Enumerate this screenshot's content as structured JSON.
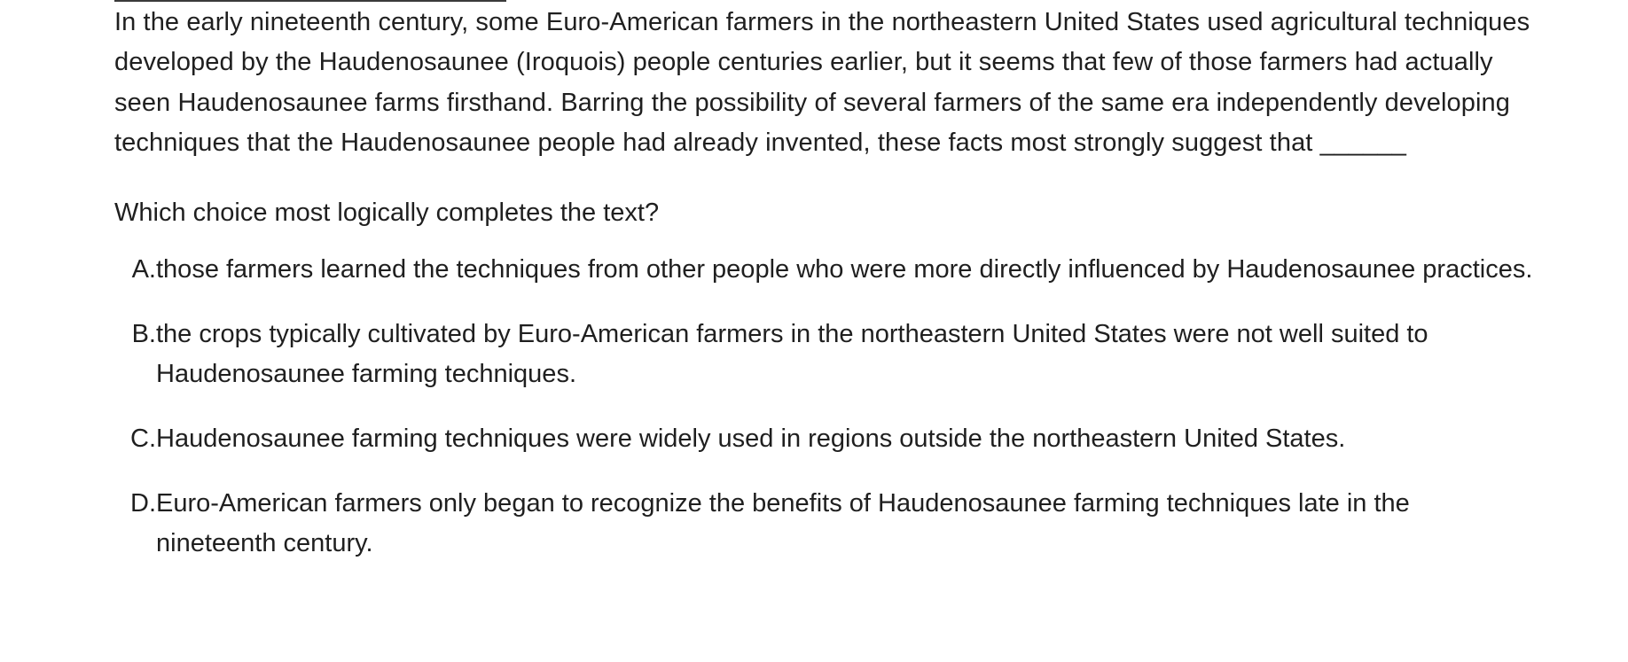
{
  "passage": {
    "text": "In the early nineteenth century, some Euro-American farmers in the northeastern United States used agricultural techniques developed by the Haudenosaunee (Iroquois) people centuries earlier, but it seems that few of those farmers had actually seen Haudenosaunee farms firsthand. Barring the possibility of several farmers of the same era independently developing techniques that the Haudenosaunee people had already invented, these facts most strongly suggest that ______"
  },
  "question": {
    "text": "Which choice most logically completes the text?"
  },
  "choices": [
    {
      "letter": "A.",
      "text": "those farmers learned the techniques from other people who were more directly influenced by Haudenosaunee practices."
    },
    {
      "letter": "B.",
      "text": "the crops typically cultivated by Euro-American farmers in the northeastern United States were not well suited to Haudenosaunee farming techniques."
    },
    {
      "letter": "C.",
      "text": "Haudenosaunee farming techniques were widely used in regions outside the northeastern United States."
    },
    {
      "letter": "D.",
      "text": "Euro-American farmers only began to recognize the benefits of Haudenosaunee farming techniques late in the nineteenth century."
    }
  ]
}
